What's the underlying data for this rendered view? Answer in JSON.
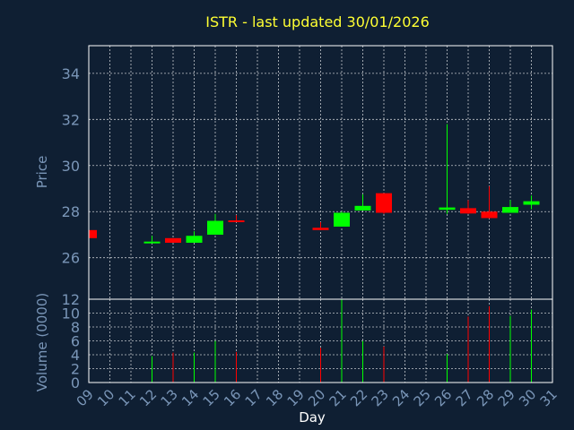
{
  "chart_data": {
    "type": "candlestick",
    "title": "ISTR - last updated 30/01/2026",
    "xlabel": "Day",
    "price_panel": {
      "ylabel": "Price",
      "ylim": [
        24.2,
        35.2
      ],
      "yticks": [
        26,
        28,
        30,
        32,
        34
      ],
      "grid": true
    },
    "volume_panel": {
      "ylabel": "Volume (0000)",
      "ylim": [
        0,
        12
      ],
      "yticks": [
        0,
        2,
        4,
        6,
        8,
        10,
        12
      ],
      "grid": true
    },
    "x_ticks": [
      "09",
      "10",
      "11",
      "12",
      "13",
      "14",
      "15",
      "16",
      "17",
      "18",
      "19",
      "20",
      "21",
      "22",
      "23",
      "24",
      "25",
      "26",
      "27",
      "28",
      "29",
      "30",
      "31"
    ],
    "up_color": "#00ff00",
    "down_color": "#ff0000",
    "candles": [
      {
        "day": 9,
        "open": 27.2,
        "high": 27.2,
        "low": 26.85,
        "close": 26.85,
        "volume": 0
      },
      {
        "day": 12,
        "open": 26.7,
        "high": 26.95,
        "low": 26.7,
        "close": 26.7,
        "volume": 3.8
      },
      {
        "day": 13,
        "open": 26.85,
        "high": 26.85,
        "low": 26.65,
        "close": 26.65,
        "volume": 4.3
      },
      {
        "day": 14,
        "open": 26.65,
        "high": 27.15,
        "low": 26.65,
        "close": 26.95,
        "volume": 4.3
      },
      {
        "day": 15,
        "open": 27.0,
        "high": 27.9,
        "low": 27.0,
        "close": 27.6,
        "volume": 6.0
      },
      {
        "day": 16,
        "open": 27.62,
        "high": 27.85,
        "low": 27.55,
        "close": 27.55,
        "volume": 4.4
      },
      {
        "day": 20,
        "open": 27.3,
        "high": 27.55,
        "low": 27.2,
        "close": 27.2,
        "volume": 5.0
      },
      {
        "day": 21,
        "open": 27.35,
        "high": 28.0,
        "low": 27.35,
        "close": 27.95,
        "volume": 12.0
      },
      {
        "day": 22,
        "open": 28.05,
        "high": 28.75,
        "low": 28.05,
        "close": 28.25,
        "volume": 6.0
      },
      {
        "day": 23,
        "open": 28.8,
        "high": 28.8,
        "low": 27.9,
        "close": 27.95,
        "volume": 5.2
      },
      {
        "day": 26,
        "open": 28.08,
        "high": 31.8,
        "low": 27.9,
        "close": 28.18,
        "volume": 4.1
      },
      {
        "day": 27,
        "open": 28.15,
        "high": 28.5,
        "low": 27.9,
        "close": 27.92,
        "volume": 9.5
      },
      {
        "day": 28,
        "open": 28.0,
        "high": 29.1,
        "low": 27.7,
        "close": 27.72,
        "volume": 11.0
      },
      {
        "day": 29,
        "open": 27.95,
        "high": 28.5,
        "low": 27.95,
        "close": 28.2,
        "volume": 9.6
      },
      {
        "day": 30,
        "open": 28.3,
        "high": 28.7,
        "low": 28.1,
        "close": 28.45,
        "volume": 10.5
      }
    ]
  }
}
